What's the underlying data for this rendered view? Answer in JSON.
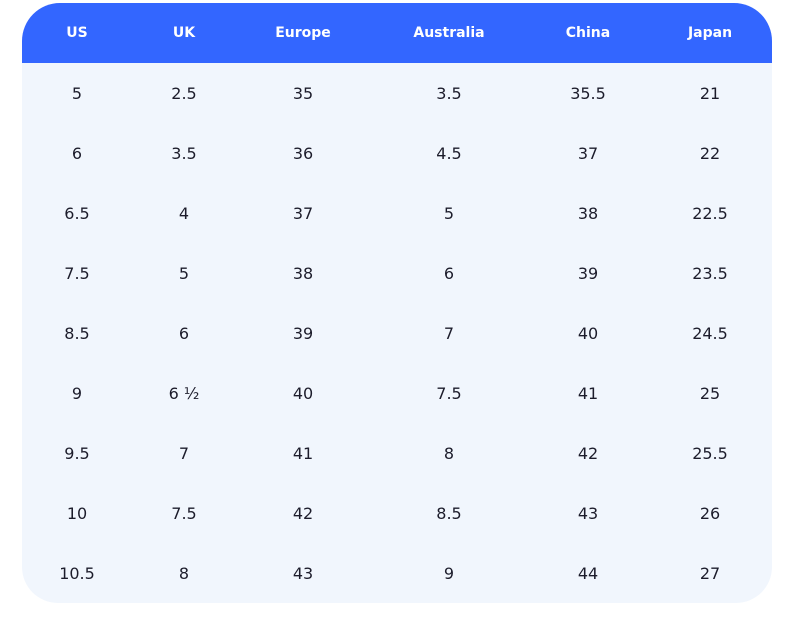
{
  "table": {
    "header": [
      "US",
      "UK",
      "Europe",
      "Australia",
      "China",
      "Japan"
    ],
    "rows": [
      [
        "5",
        "2.5",
        "35",
        "3.5",
        "35.5",
        "21"
      ],
      [
        "6",
        "3.5",
        "36",
        "4.5",
        "37",
        "22"
      ],
      [
        "6.5",
        "4",
        "37",
        "5",
        "38",
        "22.5"
      ],
      [
        "7.5",
        "5",
        "38",
        "6",
        "39",
        "23.5"
      ],
      [
        "8.5",
        "6",
        "39",
        "7",
        "40",
        "24.5"
      ],
      [
        "9",
        "6 ½",
        "40",
        "7.5",
        "41",
        "25"
      ],
      [
        "9.5",
        "7",
        "41",
        "8",
        "42",
        "25.5"
      ],
      [
        "10",
        "7.5",
        "42",
        "8.5",
        "43",
        "26"
      ],
      [
        "10.5",
        "8",
        "43",
        "9",
        "44",
        "27"
      ]
    ]
  }
}
